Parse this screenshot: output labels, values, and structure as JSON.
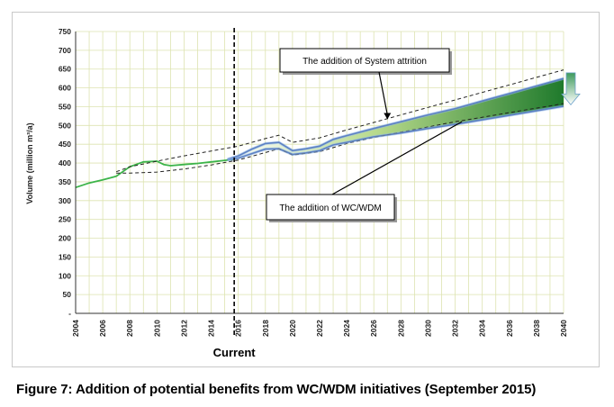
{
  "chart_data": {
    "type": "line",
    "title": "",
    "ylabel": "Volume (million m³/a)",
    "xlabel": "",
    "x_ticks": [
      "2004",
      "2006",
      "2008",
      "2010",
      "2012",
      "2014",
      "2016",
      "2018",
      "2020",
      "2022",
      "2024",
      "2026",
      "2028",
      "2030",
      "2032",
      "2034",
      "2036",
      "2038",
      "2040"
    ],
    "y_ticks": [
      "-",
      "50",
      "100",
      "150",
      "200",
      "250",
      "300",
      "350",
      "400",
      "450",
      "500",
      "550",
      "600",
      "650",
      "700",
      "750"
    ],
    "xlim": [
      2004,
      2040
    ],
    "ylim": [
      0,
      750
    ],
    "grid": true,
    "current_marker": {
      "x": 2015.7,
      "label": "Current"
    },
    "series": [
      {
        "color": "#3cb44a",
        "x": [
          2004,
          2005,
          2006,
          2007,
          2008,
          2009,
          2010,
          2010.5,
          2011,
          2012,
          2013,
          2014,
          2015,
          2015.7
        ],
        "y": [
          335,
          347,
          355,
          365,
          390,
          403,
          405,
          396,
          393,
          396,
          399,
          403,
          407,
          410
        ]
      },
      {
        "color": "#1f3f99",
        "x": [
          2015.2,
          2016,
          2017,
          2018,
          2019,
          2020,
          2021,
          2022,
          2023,
          2024,
          2026,
          2028,
          2030,
          2032,
          2034,
          2036,
          2038,
          2040
        ],
        "y": [
          410,
          419,
          437,
          452,
          455,
          433,
          438,
          445,
          463,
          473,
          492,
          510,
          528,
          545,
          565,
          585,
          605,
          625
        ]
      },
      {
        "color": "#1f3f99",
        "x": [
          2015.2,
          2016,
          2017,
          2018,
          2019,
          2020,
          2021,
          2022,
          2023,
          2024,
          2026,
          2028,
          2030,
          2032,
          2034,
          2036,
          2038,
          2040
        ],
        "y": [
          408,
          413,
          425,
          437,
          438,
          423,
          427,
          433,
          448,
          455,
          470,
          480,
          492,
          503,
          515,
          527,
          539,
          551
        ]
      },
      {
        "color": "#222222",
        "dashed": true,
        "x": [
          2007,
          2008,
          2010,
          2012,
          2014,
          2016,
          2018,
          2019,
          2020,
          2022,
          2024,
          2026,
          2028,
          2030,
          2032,
          2034,
          2036,
          2038,
          2040
        ],
        "y": [
          377,
          390,
          405,
          419,
          432,
          445,
          465,
          474,
          455,
          467,
          488,
          508,
          528,
          548,
          568,
          588,
          608,
          628,
          648
        ]
      },
      {
        "color": "#222222",
        "dashed": true,
        "x": [
          2007,
          2008,
          2010,
          2012,
          2014,
          2016,
          2018,
          2019,
          2020,
          2022,
          2024,
          2026,
          2028,
          2030,
          2032,
          2034,
          2036,
          2038,
          2040
        ],
        "y": [
          373,
          373,
          376,
          384,
          395,
          408,
          428,
          438,
          421,
          430,
          452,
          468,
          482,
          496,
          510,
          522,
          534,
          546,
          558
        ]
      }
    ],
    "annotations": [
      {
        "text": "The addition of System attrition",
        "arrow_to": [
          2027,
          514
        ]
      },
      {
        "text": "The addition of WC/WDM",
        "arrow_to": [
          2032.5,
          510
        ]
      }
    ],
    "arrow_color": "#3e9a5c"
  },
  "caption": "Figure 7: Addition of potential benefits from WC/WDM initiatives (September 2015)"
}
